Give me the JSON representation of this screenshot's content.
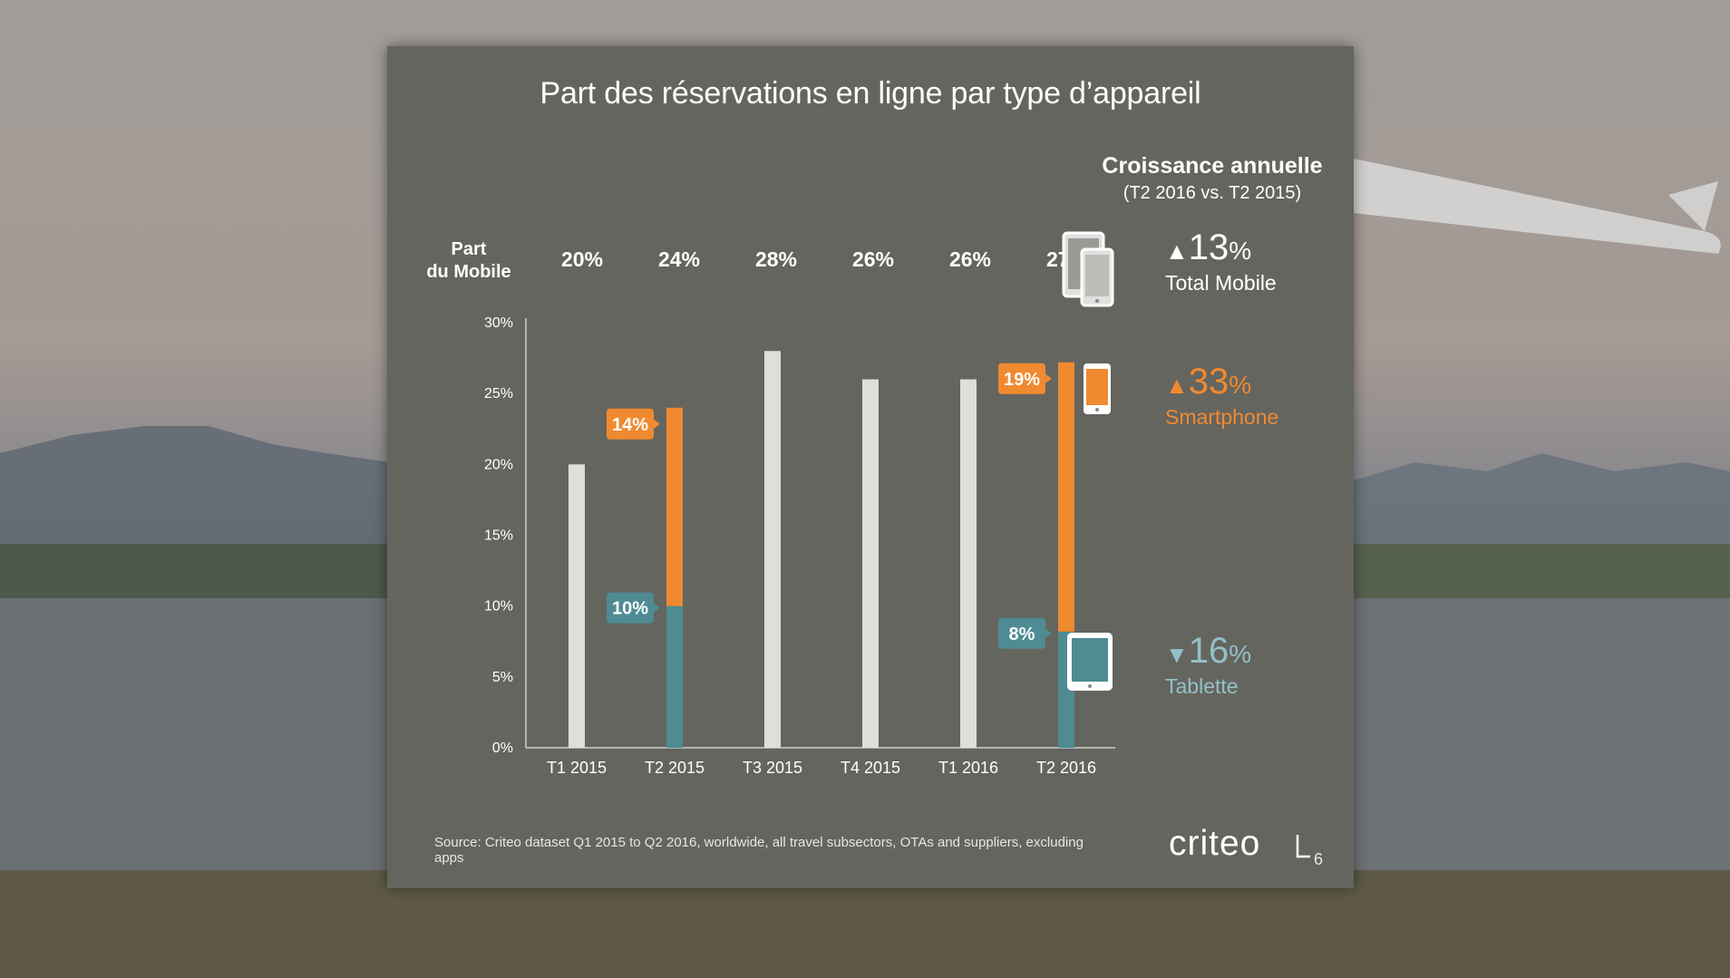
{
  "title": "Part des réservations en ligne par type d’appareil",
  "growth": {
    "heading": "Croissance annuelle",
    "subheading": "(T2 2016 vs. T2 2015)",
    "items": [
      {
        "arrow": "▲",
        "value": "13",
        "unit": "%",
        "name": "Total Mobile",
        "color": "#ffffff",
        "icon": "devices-icon"
      },
      {
        "arrow": "▲",
        "value": "33",
        "unit": "%",
        "name": "Smartphone",
        "color": "#f08a30",
        "icon": "smartphone-icon"
      },
      {
        "arrow": "▼",
        "value": "16",
        "unit": "%",
        "name": "Tablette",
        "color": "#93c0c8",
        "icon": "tablet-icon"
      }
    ]
  },
  "mobile_share": {
    "label_line1": "Part",
    "label_line2": "du Mobile",
    "values": [
      "20%",
      "24%",
      "28%",
      "26%",
      "26%",
      "27%"
    ]
  },
  "chart_data": {
    "type": "bar",
    "title": "Part des réservations en ligne par type d’appareil",
    "categories": [
      "T1 2015",
      "T2 2015",
      "T3 2015",
      "T4 2015",
      "T1 2016",
      "T2 2016"
    ],
    "ylim": [
      0,
      30
    ],
    "yticks": [
      0,
      5,
      10,
      15,
      20,
      25,
      30
    ],
    "ytick_labels": [
      "0%",
      "5%",
      "10%",
      "15%",
      "20%",
      "25%",
      "30%"
    ],
    "xlabel": "",
    "ylabel": "",
    "series": [
      {
        "name": "Total Mobile",
        "color": "#dededb",
        "values": [
          20,
          24,
          28,
          26,
          26,
          27
        ]
      },
      {
        "name": "Tablette",
        "color": "#4e8b93",
        "values": [
          null,
          10,
          null,
          null,
          null,
          8.2
        ]
      },
      {
        "name": "Smartphone",
        "color": "#f08a30",
        "values": [
          null,
          14,
          null,
          null,
          null,
          19
        ]
      }
    ],
    "stacked_categories": [
      "T2 2015",
      "T2 2016"
    ],
    "data_labels": [
      {
        "category": "T2 2015",
        "series": "Smartphone",
        "text": "14%"
      },
      {
        "category": "T2 2015",
        "series": "Tablette",
        "text": "10%"
      },
      {
        "category": "T2 2016",
        "series": "Smartphone",
        "text": "19%"
      },
      {
        "category": "T2 2016",
        "series": "Tablette",
        "text": "8%"
      }
    ]
  },
  "source": "Source: Criteo dataset Q1 2015 to Q2 2016, worldwide, all travel subsectors, OTAs and suppliers, excluding apps",
  "logo": "criteo",
  "page_number": "6"
}
